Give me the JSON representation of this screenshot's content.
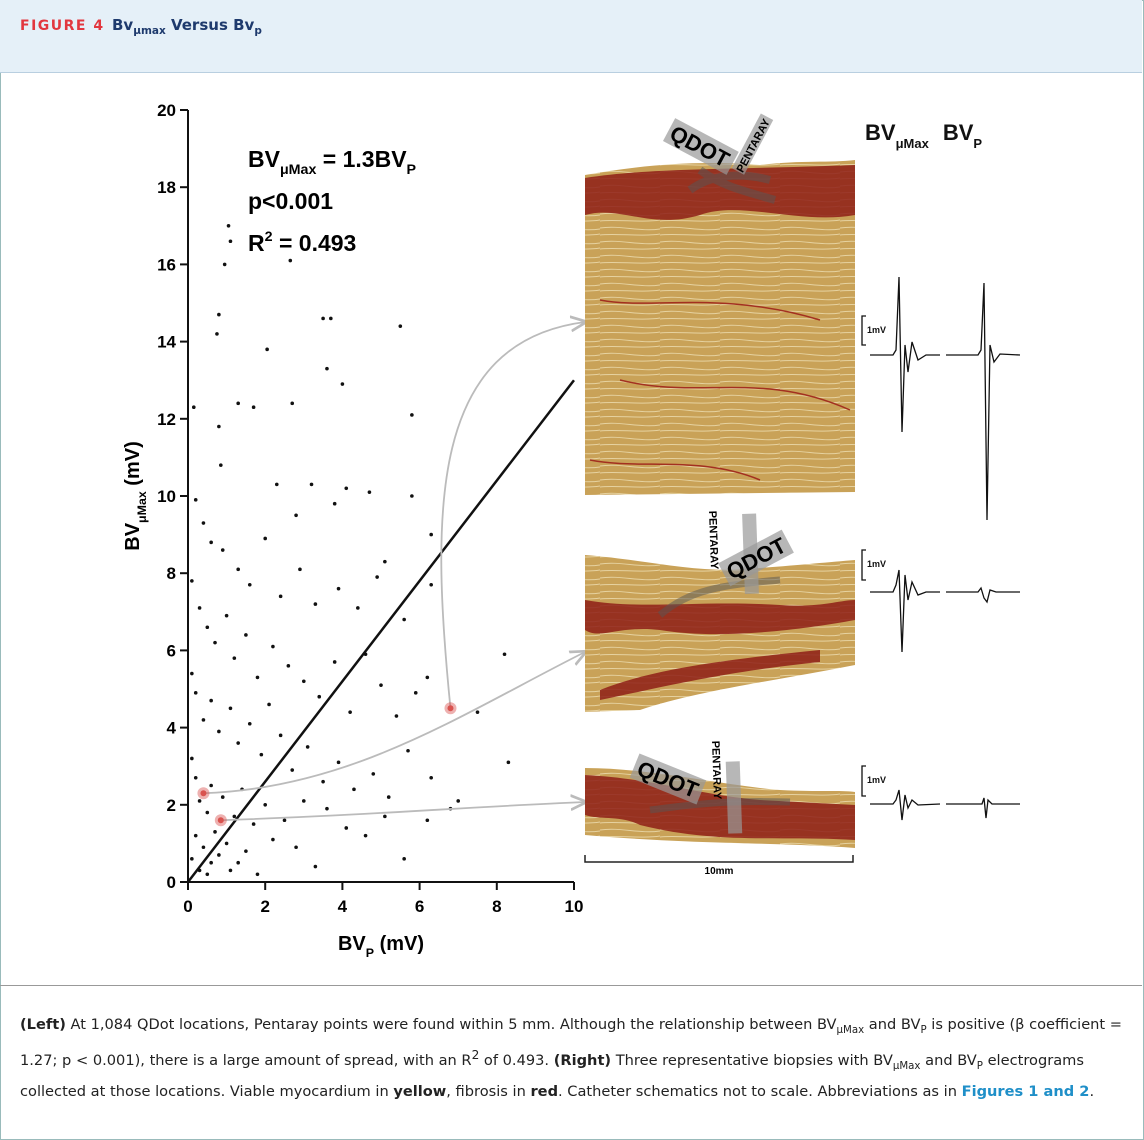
{
  "header": {
    "label": "FIGURE 4",
    "title": [
      "Bv",
      "μmax",
      " Versus Bv",
      "p"
    ]
  },
  "chart_data": {
    "type": "scatter",
    "x_label": [
      "BV",
      "P",
      " (mV)"
    ],
    "y_label": [
      "BV",
      "μMax",
      " (mV)"
    ],
    "annotations": {
      "equation": [
        "BV",
        "μMax",
        " = 1.3BV",
        "P"
      ],
      "p": "p<0.001",
      "r2": [
        "R",
        "2",
        " = 0.493"
      ]
    },
    "xlim": [
      0,
      10
    ],
    "ylim": [
      0,
      20
    ],
    "xticks": [
      0,
      2,
      4,
      6,
      8,
      10
    ],
    "yticks": [
      0,
      2,
      4,
      6,
      8,
      10,
      12,
      14,
      16,
      18,
      20
    ],
    "color": "#111111",
    "x": [
      0.15,
      0.8,
      0.75,
      0.95,
      1.05,
      1.1,
      2.65,
      0.8,
      0.85,
      1.3,
      1.7,
      2.05,
      2.3,
      2.7,
      2.8,
      3.5,
      3.7,
      3.6,
      4.0,
      5.5,
      5.8,
      3.2,
      3.8,
      4.1,
      4.7,
      5.1,
      5.8,
      6.3,
      0.2,
      0.4,
      0.6,
      0.9,
      1.3,
      1.6,
      2.0,
      2.4,
      2.9,
      3.3,
      3.9,
      4.4,
      4.9,
      5.6,
      6.3,
      0.1,
      0.3,
      0.5,
      0.7,
      1.0,
      1.2,
      1.5,
      1.8,
      2.2,
      2.6,
      3.0,
      3.4,
      3.8,
      4.2,
      4.6,
      5.0,
      5.4,
      5.9,
      6.2,
      0.1,
      0.2,
      0.4,
      0.6,
      0.8,
      1.1,
      1.3,
      1.6,
      1.9,
      2.1,
      2.4,
      2.7,
      3.1,
      3.5,
      3.9,
      4.3,
      4.8,
      5.2,
      5.7,
      6.3,
      7.5,
      8.2,
      8.3,
      0.1,
      0.2,
      0.3,
      0.5,
      0.6,
      0.7,
      0.9,
      1.0,
      1.2,
      1.4,
      1.5,
      1.7,
      2.0,
      2.2,
      2.5,
      2.8,
      3.0,
      3.3,
      3.6,
      4.1,
      4.6,
      5.1,
      5.6,
      6.2,
      6.8,
      7.0,
      0.1,
      0.2,
      0.3,
      0.4,
      0.5,
      0.6,
      0.8,
      1.1,
      1.3,
      1.8
    ],
    "values": [
      12.3,
      14.7,
      14.2,
      16.0,
      17.0,
      16.6,
      16.1,
      11.8,
      10.8,
      12.4,
      12.3,
      13.8,
      10.3,
      12.4,
      9.5,
      14.6,
      14.6,
      13.3,
      12.9,
      14.4,
      12.1,
      10.3,
      9.8,
      10.2,
      10.1,
      8.3,
      10.0,
      9.0,
      9.9,
      9.3,
      8.8,
      8.6,
      8.1,
      7.7,
      8.9,
      7.4,
      8.1,
      7.2,
      7.6,
      7.1,
      7.9,
      6.8,
      7.7,
      7.8,
      7.1,
      6.6,
      6.2,
      6.9,
      5.8,
      6.4,
      5.3,
      6.1,
      5.6,
      5.2,
      4.8,
      5.7,
      4.4,
      5.9,
      5.1,
      4.3,
      4.9,
      5.3,
      5.4,
      4.9,
      4.2,
      4.7,
      3.9,
      4.5,
      3.6,
      4.1,
      3.3,
      4.6,
      3.8,
      2.9,
      3.5,
      2.6,
      3.1,
      2.4,
      2.8,
      2.2,
      3.4,
      2.7,
      4.4,
      5.9,
      3.1,
      3.2,
      2.7,
      2.1,
      1.8,
      2.5,
      1.3,
      2.2,
      1.0,
      1.7,
      2.4,
      0.8,
      1.5,
      2.0,
      1.1,
      1.6,
      0.9,
      2.1,
      0.4,
      1.9,
      1.4,
      1.2,
      1.7,
      0.6,
      1.6,
      1.9,
      2.1,
      0.6,
      1.2,
      0.3,
      0.9,
      0.2,
      0.5,
      0.7,
      0.3,
      0.5,
      0.2
    ],
    "highlight": {
      "x": [
        0.4,
        0.85,
        6.8
      ],
      "values": [
        2.3,
        1.6,
        4.5
      ],
      "color": "#d9534f"
    },
    "fit": {
      "x": [
        0,
        10
      ],
      "values": [
        0,
        13
      ],
      "color": "#111111"
    }
  },
  "panel": {
    "egm_header": [
      "BV",
      "μMax",
      "BV",
      "P"
    ],
    "catheters": [
      "QDOT",
      "PENTARAY"
    ],
    "scale": "1mV",
    "scale_bar": "10mm"
  },
  "caption": [
    "(Left)",
    " At 1,084 QDot locations, Pentaray points were found within 5 mm. Although the relationship between BV",
    "μMax",
    " and BV",
    "P",
    " is positive (β coefficient = 1.27; p < 0.001), there is a large amount of spread, with an R",
    "2",
    " of 0.493. ",
    "(Right)",
    " Three representative biopsies with BV",
    "μMax",
    " and BV",
    "P",
    " electrograms collected at those locations. Viable myocardium in ",
    "yellow",
    ", fibrosis in ",
    "red",
    ". Catheter schematics not to scale. Abbreviations as in ",
    "Figures 1 and 2",
    "."
  ]
}
